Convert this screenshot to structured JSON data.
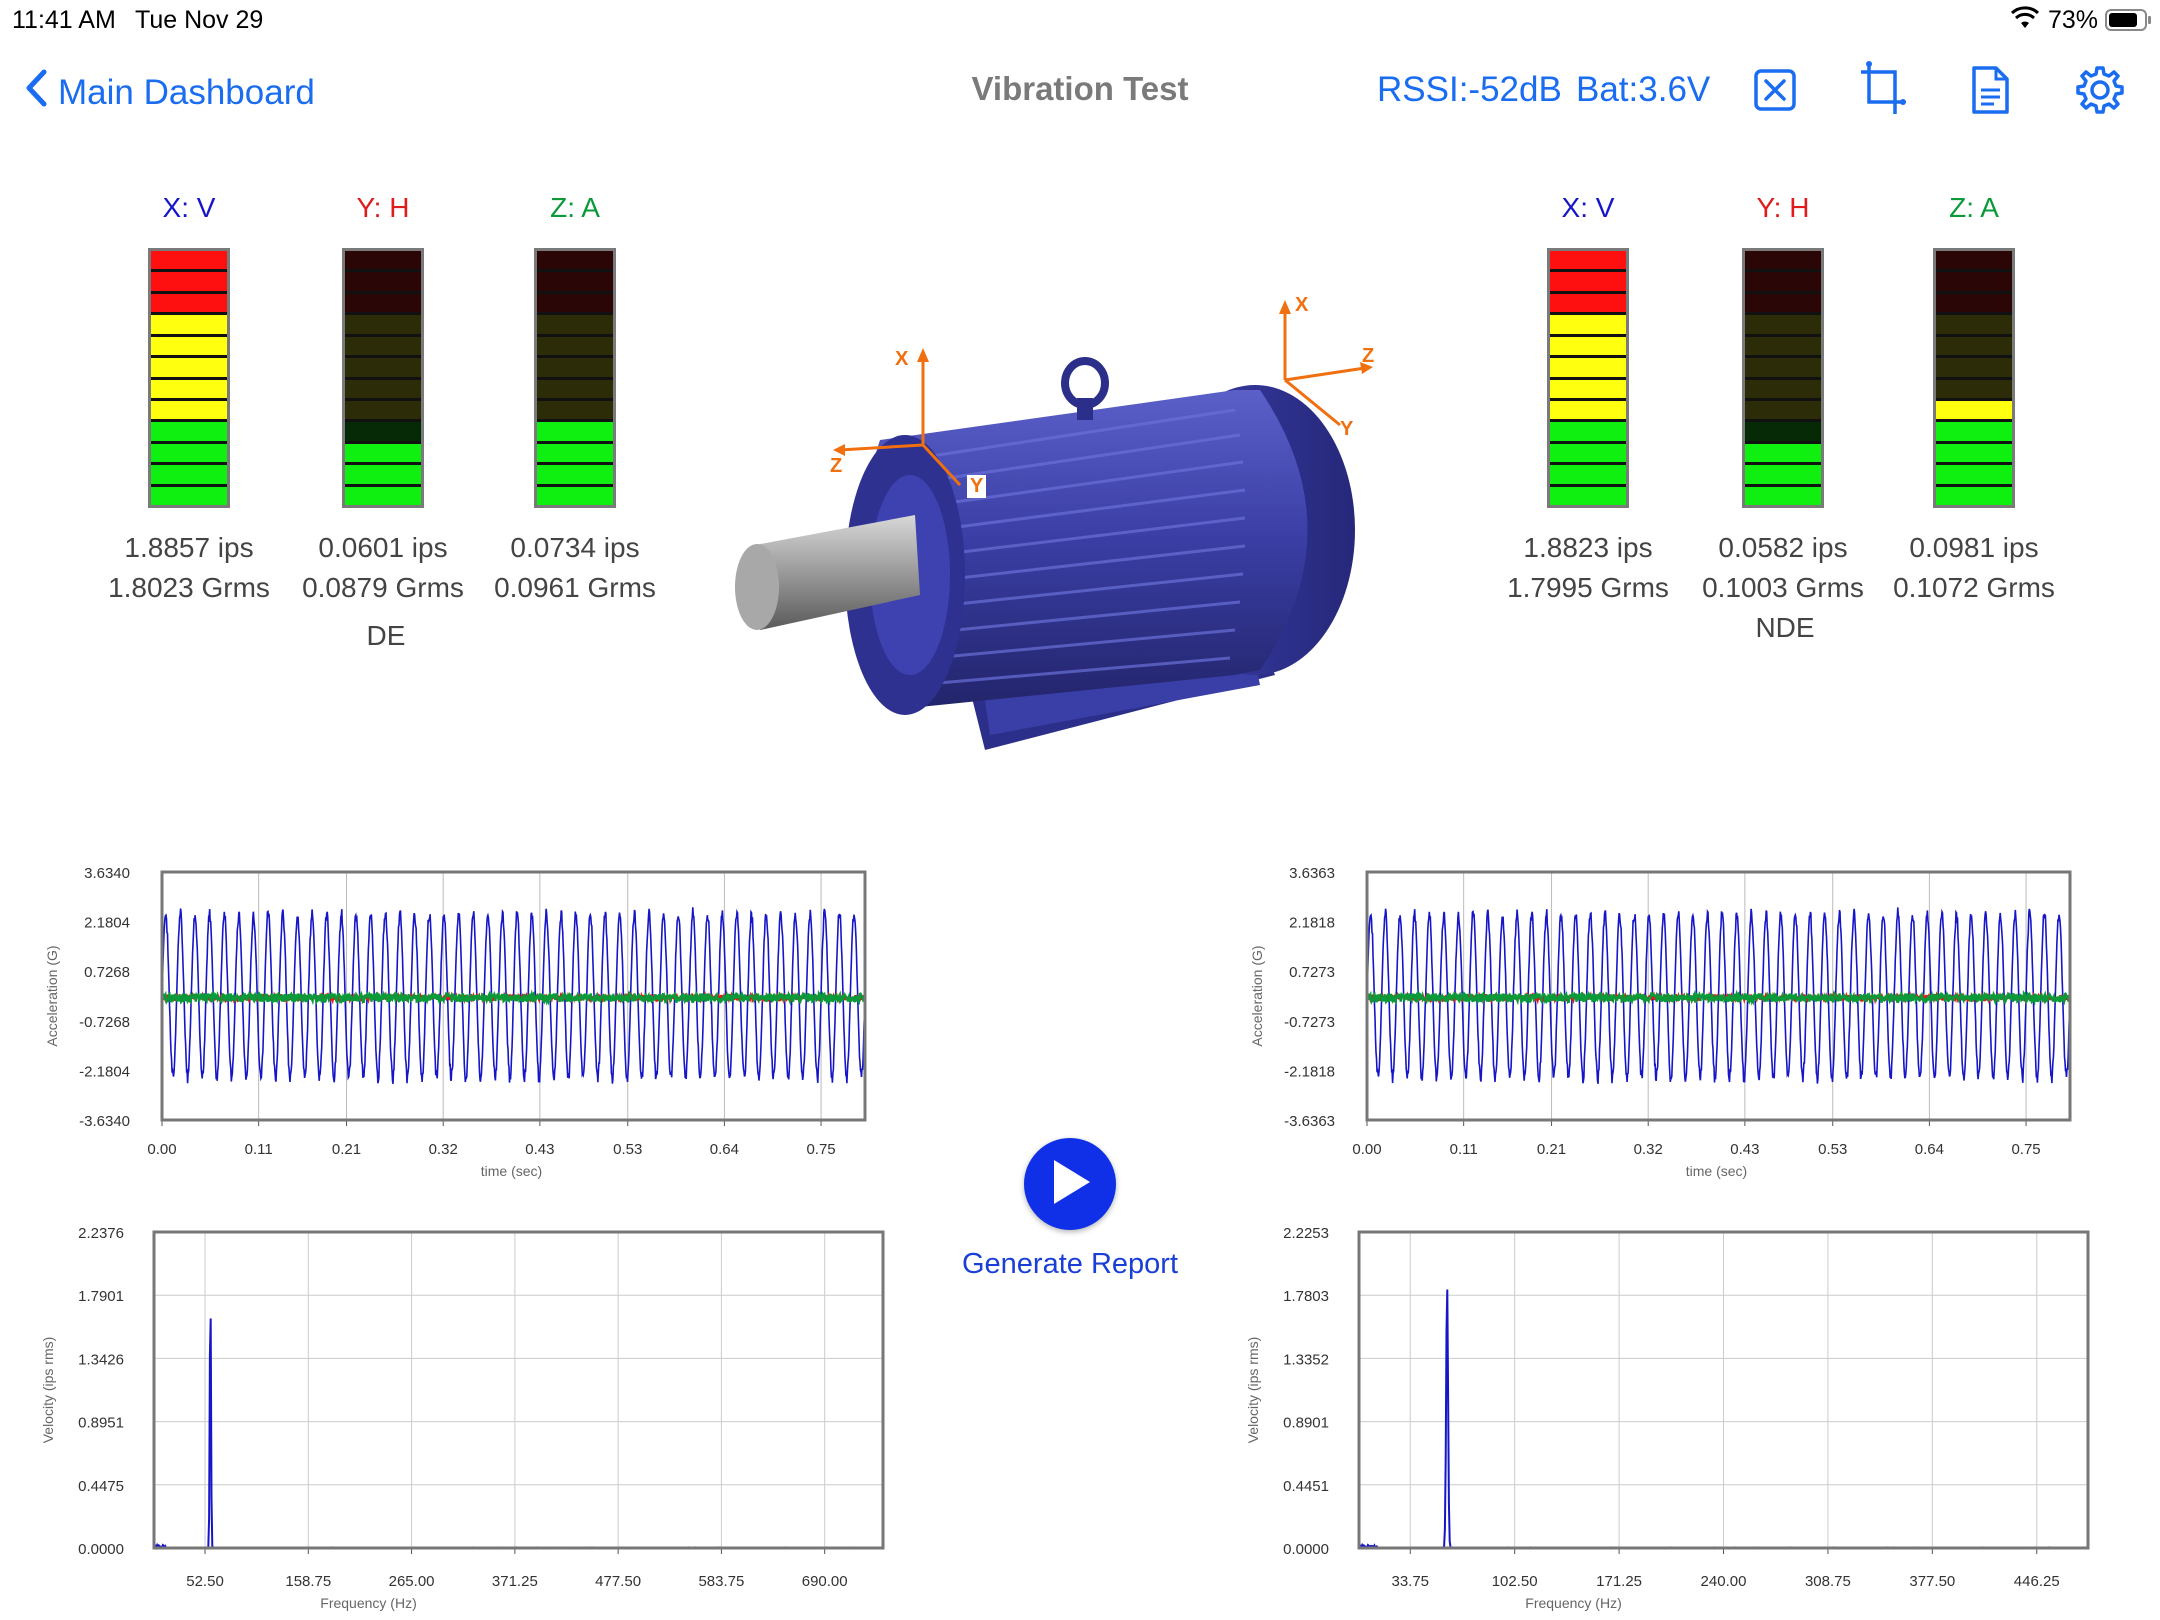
{
  "status_bar": {
    "time": "11:41 AM",
    "date": "Tue Nov 29",
    "battery": "73%"
  },
  "header": {
    "back_label": "Main Dashboard",
    "title": "Vibration Test",
    "rssi": "RSSI:-52dB",
    "battery": "Bat:3.6V"
  },
  "colors": {
    "accent": "#1a6cf0",
    "x_axis": "#1616c8",
    "y_axis": "#e01b1b",
    "z_axis": "#0a9a3a",
    "meter_red": "#ff1010",
    "meter_yellow": "#ffff10",
    "meter_green": "#10f010"
  },
  "icons": [
    "close-square-icon",
    "crop-icon",
    "document-icon",
    "gear-icon",
    "chevron-left-icon",
    "play-icon"
  ],
  "de": {
    "label": "DE",
    "channels": [
      {
        "axis": "X: V",
        "ips": "1.8857 ips",
        "grms": "1.8023 Grms",
        "level": 12
      },
      {
        "axis": "Y: H",
        "ips": "0.0601 ips",
        "grms": "0.0879 Grms",
        "level": 3
      },
      {
        "axis": "Z: A",
        "ips": "0.0734 ips",
        "grms": "0.0961 Grms",
        "level": 4
      }
    ]
  },
  "nde": {
    "label": "NDE",
    "channels": [
      {
        "axis": "X: V",
        "ips": "1.8823 ips",
        "grms": "1.7995 Grms",
        "level": 12
      },
      {
        "axis": "Y: H",
        "ips": "0.0582 ips",
        "grms": "0.1003 Grms",
        "level": 3
      },
      {
        "axis": "Z: A",
        "ips": "0.0981 ips",
        "grms": "0.1072 Grms",
        "level": 5
      }
    ]
  },
  "motor_axes": {
    "de_x": "X",
    "de_y": "Y",
    "de_z": "Z",
    "nde_x": "X",
    "nde_y": "Y",
    "nde_z": "Z"
  },
  "controls": {
    "generate_label": "Generate Report"
  },
  "chart_data": [
    {
      "id": "de-time",
      "type": "line",
      "title": "",
      "xlabel": "time (sec)",
      "ylabel": "Acceleration (G)",
      "yticks": [
        "3.6340",
        "2.1804",
        "0.7268",
        "-0.7268",
        "-2.1804",
        "-3.6340"
      ],
      "xticks": [
        "0.00",
        "0.11",
        "0.21",
        "0.32",
        "0.43",
        "0.53",
        "0.64",
        "0.75"
      ],
      "ylim": [
        -3.634,
        3.634
      ],
      "xlim": [
        0,
        0.8
      ],
      "series": [
        {
          "axis": "X",
          "amplitude": 2.5,
          "frequency_hz": 60
        },
        {
          "axis": "Y",
          "amplitude": 0.05,
          "frequency_hz": 0
        },
        {
          "axis": "Z",
          "amplitude": 0.08,
          "frequency_hz": 0
        }
      ]
    },
    {
      "id": "nde-time",
      "type": "line",
      "title": "",
      "xlabel": "time (sec)",
      "ylabel": "Acceleration (G)",
      "yticks": [
        "3.6363",
        "2.1818",
        "0.7273",
        "-0.7273",
        "-2.1818",
        "-3.6363"
      ],
      "xticks": [
        "0.00",
        "0.11",
        "0.21",
        "0.32",
        "0.43",
        "0.53",
        "0.64",
        "0.75"
      ],
      "ylim": [
        -3.6363,
        3.6363
      ],
      "xlim": [
        0,
        0.8
      ],
      "series": [
        {
          "axis": "X",
          "amplitude": 2.5,
          "frequency_hz": 60
        },
        {
          "axis": "Y",
          "amplitude": 0.05,
          "frequency_hz": 0
        },
        {
          "axis": "Z",
          "amplitude": 0.08,
          "frequency_hz": 0
        }
      ]
    },
    {
      "id": "de-fft",
      "type": "line",
      "title": "",
      "xlabel": "Frequency (Hz)",
      "ylabel": "Velocity (ips rms)",
      "yticks": [
        "2.2376",
        "1.7901",
        "1.3426",
        "0.8951",
        "0.4475",
        "0.0000"
      ],
      "xticks": [
        "52.50",
        "158.75",
        "265.00",
        "371.25",
        "477.50",
        "583.75",
        "690.00"
      ],
      "ylim": [
        0,
        2.2376
      ],
      "xlim": [
        0,
        750
      ],
      "peaks": [
        {
          "freq": 58,
          "value": 1.86
        }
      ]
    },
    {
      "id": "nde-fft",
      "type": "line",
      "title": "",
      "xlabel": "Frequency (Hz)",
      "ylabel": "Velocity (ips rms)",
      "yticks": [
        "2.2253",
        "1.7803",
        "1.3352",
        "0.8901",
        "0.4451",
        "0.0000"
      ],
      "xticks": [
        "33.75",
        "102.50",
        "171.25",
        "240.00",
        "308.75",
        "377.50",
        "446.25"
      ],
      "ylim": [
        0,
        2.2253
      ],
      "xlim": [
        0,
        480
      ],
      "peaks": [
        {
          "freq": 58,
          "value": 1.86
        }
      ]
    }
  ]
}
